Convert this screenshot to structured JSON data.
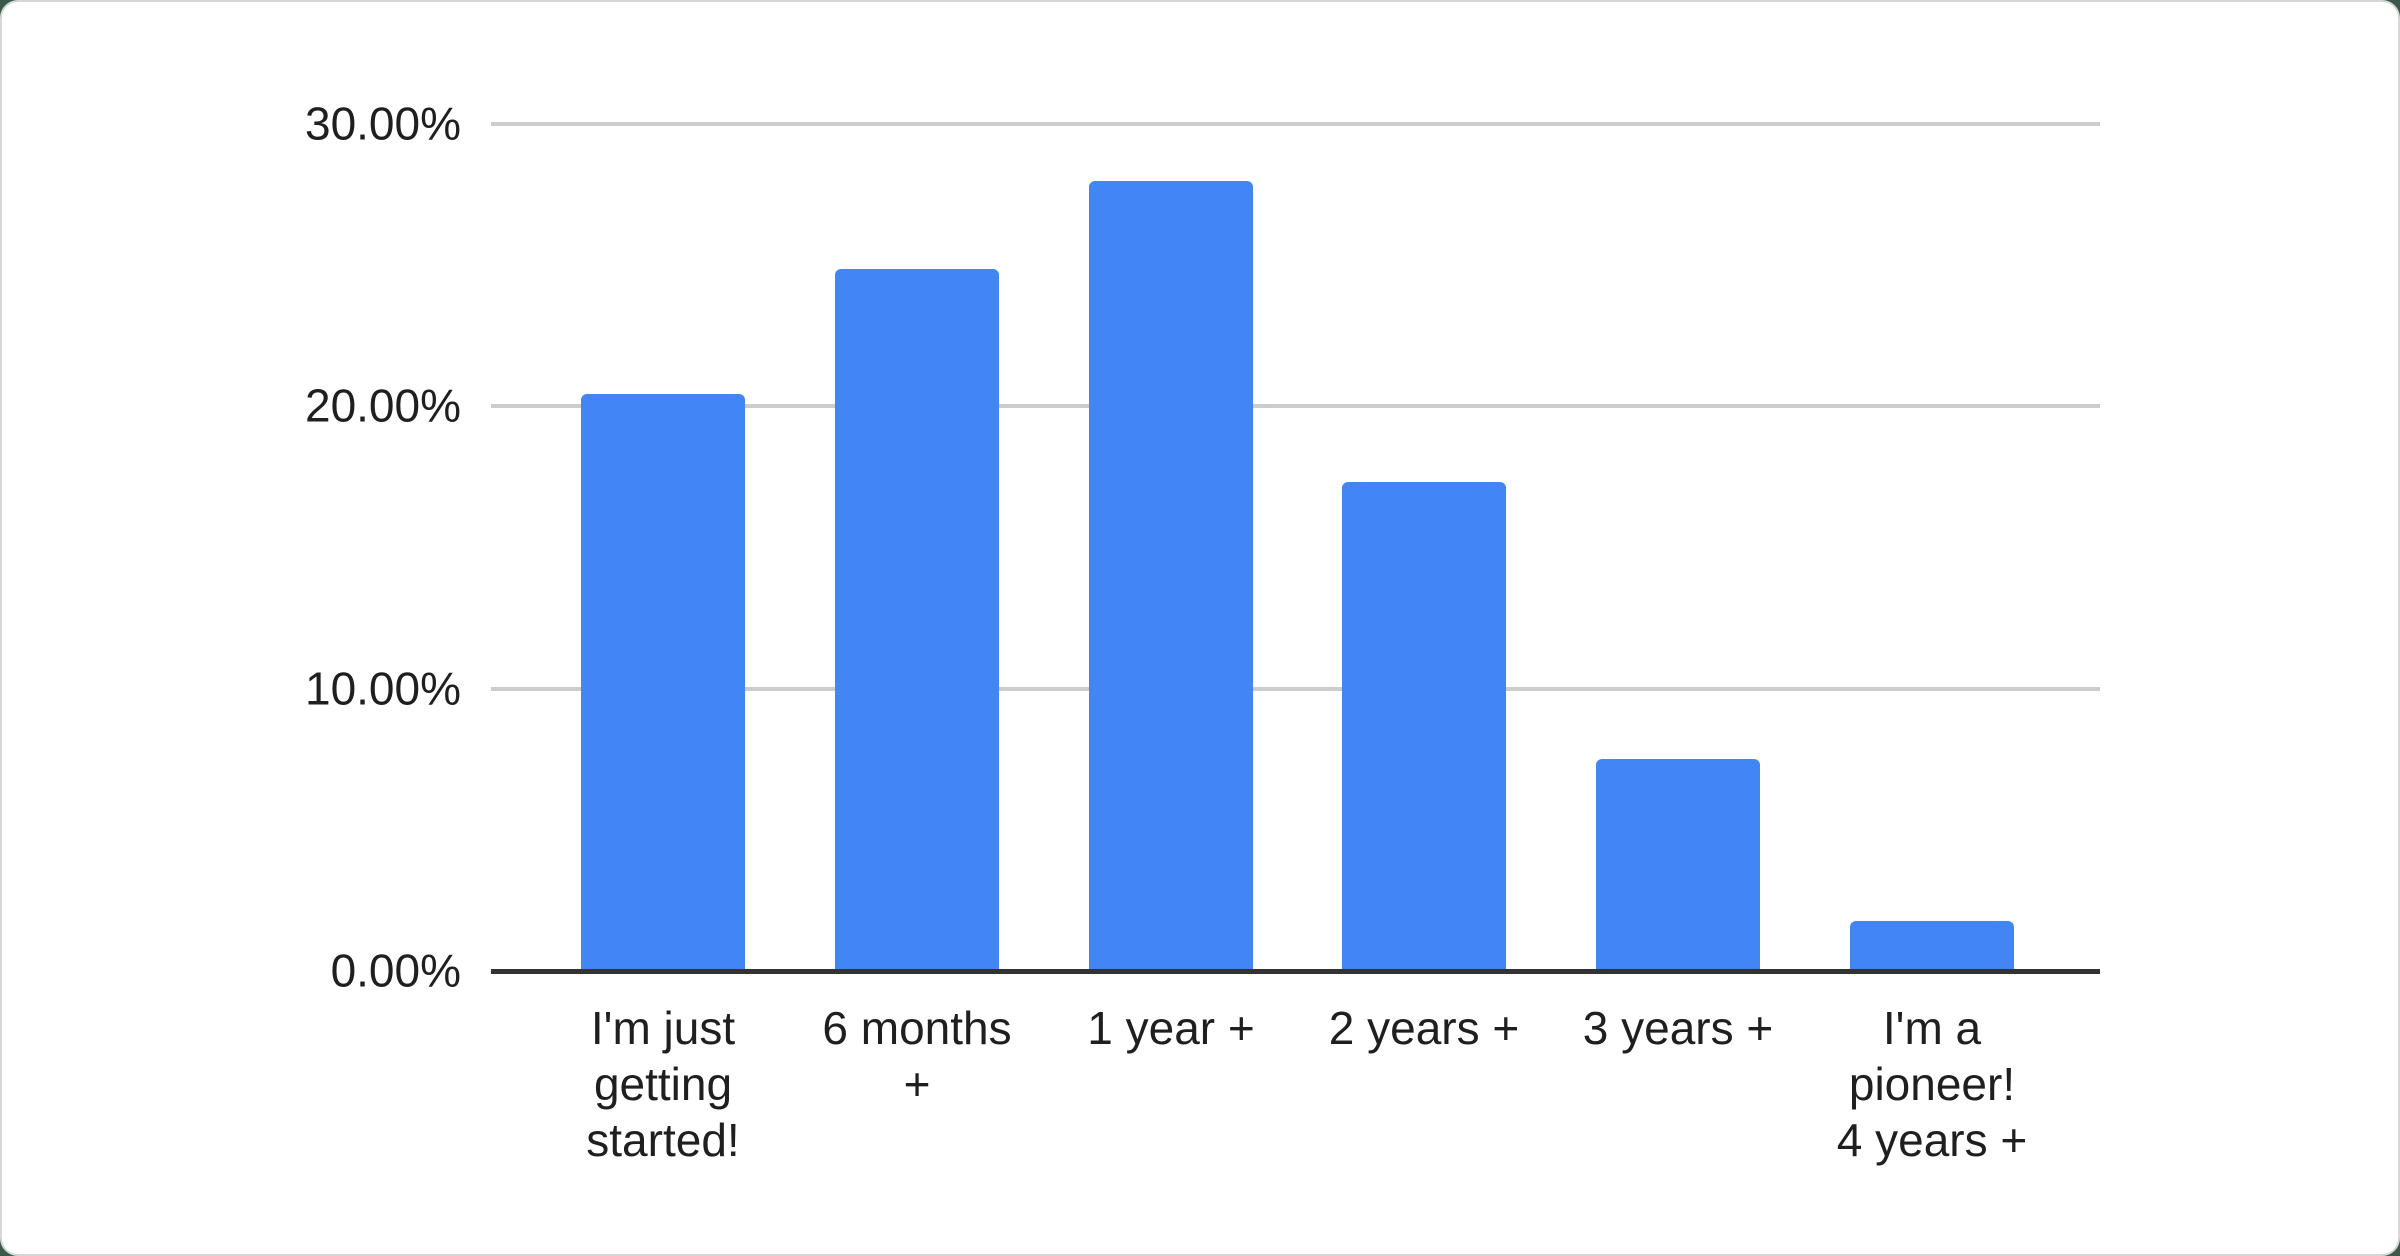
{
  "chart_data": {
    "type": "bar",
    "categories": [
      "I'm just getting started!",
      "6 months +",
      "1 year +",
      "2 years +",
      "3 years +",
      "I'm a pioneer! 4 years +"
    ],
    "values": [
      20.44,
      24.87,
      27.98,
      17.32,
      7.51,
      1.77
    ],
    "tick_labels": [
      "I'm just\ngetting\nstarted!",
      "6 months\n+",
      "1 year +",
      "2 years +",
      "3 years +",
      "I'm a\npioneer!\n4 years +"
    ],
    "yticks": [
      {
        "value": 30,
        "label": "30.00%"
      },
      {
        "value": 20,
        "label": "20.00%"
      },
      {
        "value": 10,
        "label": "10.00%"
      },
      {
        "value": 0,
        "label": "0.00%"
      }
    ],
    "title": "",
    "xlabel": "",
    "ylabel": "",
    "ylim": [
      0,
      30
    ],
    "grid": true,
    "legend": "none"
  },
  "colors": {
    "bar": "#4285f4",
    "gridline": "#cccccc",
    "axis_line": "#333333",
    "label_text": "#1f1f1f",
    "card_background": "#ffffff",
    "card_border": "#d4d9d6",
    "page_background": "#3c5a4b"
  }
}
